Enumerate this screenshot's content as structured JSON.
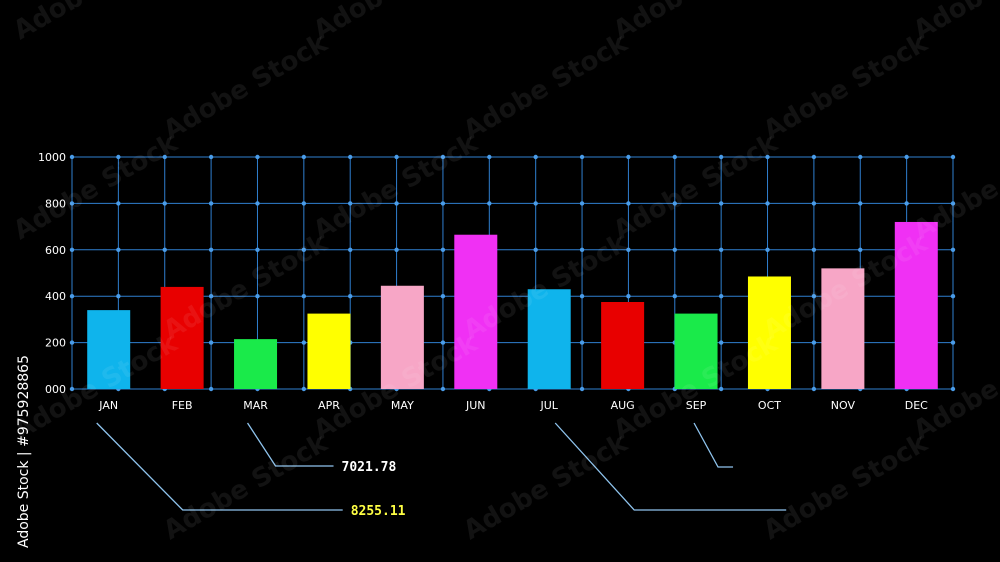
{
  "chart_data": {
    "type": "bar",
    "categories": [
      "JAN",
      "FEB",
      "MAR",
      "APR",
      "MAY",
      "JUN",
      "JUL",
      "AUG",
      "SEP",
      "OCT",
      "NOV",
      "DEC"
    ],
    "values": [
      340,
      440,
      215,
      325,
      445,
      665,
      430,
      375,
      325,
      485,
      520,
      720
    ],
    "bar_colors": [
      "#0fb4ec",
      "#e80000",
      "#1aea4a",
      "#ffff00",
      "#f7a6c6",
      "#f030f4",
      "#0fb4ec",
      "#e80000",
      "#1aea4a",
      "#ffff00",
      "#f7a6c6",
      "#f030f4"
    ],
    "yticks": [
      "000",
      "200",
      "400",
      "600",
      "800",
      "1000"
    ],
    "ylim": [
      0,
      1000
    ],
    "grid": true,
    "grid_color": "#2f7fd0",
    "callouts": [
      {
        "value": "7021.78",
        "color": "#ffffff",
        "from_category": "MAR"
      },
      {
        "value": "8255.11",
        "color": "#ffff44",
        "from_category": "JAN"
      },
      {
        "value": "",
        "color": "#ffffff",
        "from_category": "JUL"
      },
      {
        "value": "",
        "color": "#ffffff",
        "from_category": "SEP"
      }
    ]
  },
  "watermark": {
    "text": "Adobe Stock",
    "side_text": "Adobe Stock | #975928865"
  }
}
